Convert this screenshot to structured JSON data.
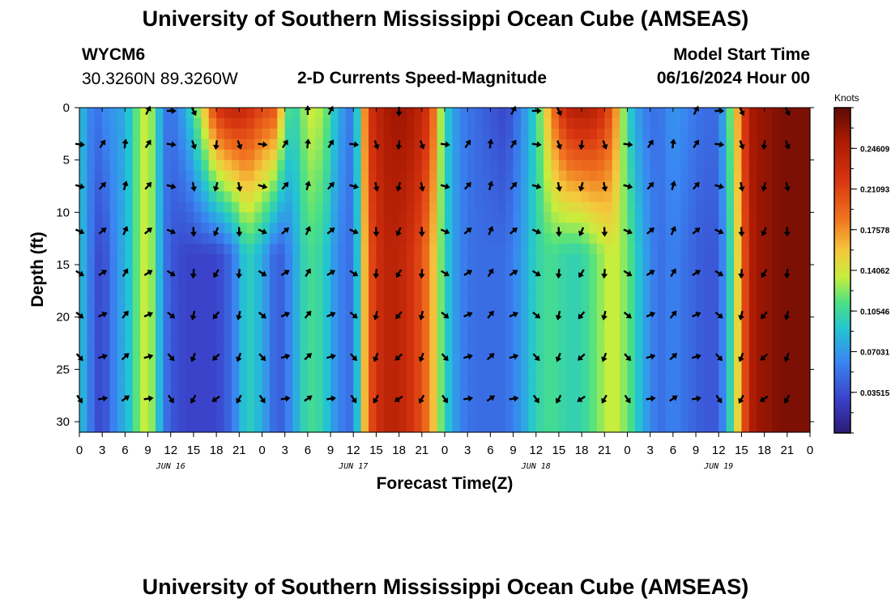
{
  "header": {
    "title": "University of Southern Mississippi Ocean Cube (AMSEAS)",
    "station_id": "WYCM6",
    "station_coords": "30.3260N  89.3260W",
    "plot_title": "2-D Currents Speed-Magnitude",
    "model_start_label": "Model Start Time",
    "model_start_value": "06/16/2024 Hour 00",
    "footer_title": "University of Southern Mississippi Ocean Cube (AMSEAS)"
  },
  "chart_data": {
    "type": "heatmap",
    "title": "2-D Currents Speed-Magnitude",
    "xlabel": "Forecast Time(Z)",
    "ylabel": "Depth (ft)",
    "x_range_hours": [
      0,
      96
    ],
    "y_range_ft": [
      0,
      31
    ],
    "x_tick_labels": [
      "0",
      "3",
      "6",
      "9",
      "12",
      "15",
      "18",
      "21",
      "0",
      "3",
      "6",
      "9",
      "12",
      "15",
      "18",
      "21",
      "0",
      "3",
      "6",
      "9",
      "12",
      "15",
      "18",
      "21",
      "0",
      "3",
      "6",
      "9",
      "12",
      "15",
      "18",
      "21",
      "0"
    ],
    "date_labels": [
      {
        "label": "JUN 16",
        "hour": 12
      },
      {
        "label": "JUN 17",
        "hour": 36
      },
      {
        "label": "JUN 18",
        "hour": 60
      },
      {
        "label": "JUN 19",
        "hour": 84
      }
    ],
    "y_ticks": [
      0,
      5,
      10,
      15,
      20,
      25,
      30
    ],
    "colorbar": {
      "units": "Knots",
      "range": [
        0.0,
        0.2813
      ],
      "tick_values": [
        0.03515,
        0.07031,
        0.10546,
        0.14062,
        0.17578,
        0.21093,
        0.24609
      ],
      "tick_labels": [
        "0.03515",
        "0.07031",
        "0.10546",
        "0.14062",
        "0.17578",
        "0.21093",
        "0.24609"
      ]
    },
    "arrow_depths_ft": [
      3.5,
      7.5,
      11.8,
      15.8,
      19.8,
      23.8,
      27.8
    ],
    "arrow_hours": [
      0,
      3,
      6,
      9,
      12,
      15,
      18,
      21,
      24,
      27,
      30,
      33,
      36,
      39,
      42,
      45,
      48,
      51,
      54,
      57,
      60,
      63,
      66,
      69,
      72,
      75,
      78,
      81,
      84,
      87,
      90,
      93
    ],
    "top_row_arrow_hours": [
      9,
      12,
      15,
      30,
      33,
      42,
      57,
      60,
      63,
      81,
      84,
      87,
      93
    ],
    "speed_profile": {
      "hours": [
        0,
        1,
        2,
        3,
        4,
        5,
        6,
        7,
        8,
        9,
        10,
        11,
        12,
        14,
        16,
        18,
        20,
        22,
        24,
        26,
        27,
        28,
        29,
        30,
        32,
        34,
        36,
        38,
        40,
        42,
        44,
        46,
        48,
        50,
        52,
        54,
        56,
        58,
        60,
        62,
        64,
        66,
        68,
        70,
        72,
        74,
        76,
        78,
        80,
        82,
        84,
        86,
        88,
        89,
        90,
        92,
        94,
        96
      ],
      "surface_knots": [
        0.09,
        0.07,
        0.05,
        0.06,
        0.07,
        0.07,
        0.08,
        0.1,
        0.13,
        0.14,
        0.11,
        0.06,
        0.05,
        0.08,
        0.14,
        0.22,
        0.24,
        0.23,
        0.21,
        0.2,
        0.12,
        0.1,
        0.11,
        0.14,
        0.13,
        0.08,
        0.05,
        0.22,
        0.25,
        0.26,
        0.25,
        0.22,
        0.1,
        0.06,
        0.05,
        0.04,
        0.03,
        0.06,
        0.1,
        0.18,
        0.24,
        0.25,
        0.24,
        0.2,
        0.1,
        0.06,
        0.05,
        0.07,
        0.06,
        0.05,
        0.05,
        0.14,
        0.25,
        0.26,
        0.26,
        0.27,
        0.27,
        0.27
      ],
      "bottom_knots": [
        0.09,
        0.07,
        0.04,
        0.03,
        0.05,
        0.07,
        0.08,
        0.1,
        0.13,
        0.14,
        0.11,
        0.06,
        0.04,
        0.03,
        0.03,
        0.03,
        0.05,
        0.1,
        0.08,
        0.04,
        0.05,
        0.07,
        0.09,
        0.11,
        0.1,
        0.06,
        0.05,
        0.2,
        0.24,
        0.24,
        0.22,
        0.18,
        0.1,
        0.06,
        0.05,
        0.05,
        0.05,
        0.07,
        0.1,
        0.11,
        0.1,
        0.1,
        0.12,
        0.14,
        0.12,
        0.08,
        0.05,
        0.06,
        0.05,
        0.04,
        0.04,
        0.12,
        0.24,
        0.26,
        0.26,
        0.27,
        0.27,
        0.27
      ]
    }
  }
}
